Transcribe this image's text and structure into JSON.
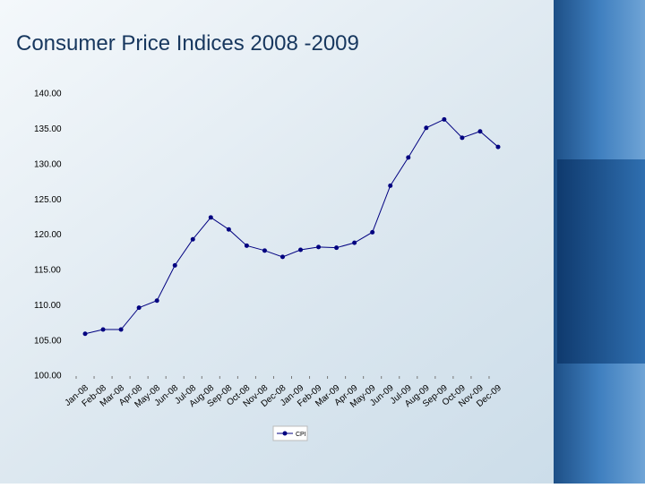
{
  "chart_data": {
    "type": "line",
    "title": "Consumer Price Indices 2008 -2009",
    "categories": [
      "Jan-08",
      "Feb-08",
      "Mar-08",
      "Apr-08",
      "May-08",
      "Jun-08",
      "Jul-08",
      "Aug-08",
      "Sep-08",
      "Oct-08",
      "Nov-08",
      "Dec-08",
      "Jan-09",
      "Feb-09",
      "Mar-09",
      "Apr-09",
      "May-09",
      "Jun-09",
      "Jul-09",
      "Aug-09",
      "Sep-09",
      "Oct-09",
      "Nov-09",
      "Dec-09"
    ],
    "series": [
      {
        "name": "CPI",
        "color": "#000080",
        "values": [
          106.0,
          106.6,
          106.6,
          109.7,
          110.7,
          115.7,
          119.4,
          122.5,
          120.8,
          118.5,
          117.8,
          116.9,
          117.9,
          118.3,
          118.2,
          118.9,
          120.4,
          127.0,
          131.0,
          135.2,
          136.4,
          133.8,
          134.7,
          132.5
        ]
      }
    ],
    "ylim": [
      100,
      140
    ],
    "yticks": [
      {
        "value": 100,
        "label": "100.00"
      },
      {
        "value": 105,
        "label": "105.00"
      },
      {
        "value": 110,
        "label": "110.00"
      },
      {
        "value": 115,
        "label": "115.00"
      },
      {
        "value": 120,
        "label": "120.00"
      },
      {
        "value": 125,
        "label": "125.00"
      },
      {
        "value": 130,
        "label": "130.00"
      },
      {
        "value": 135,
        "label": "135.00"
      },
      {
        "value": 140,
        "label": "140.00"
      }
    ],
    "grid": false,
    "legend": "bottom"
  }
}
